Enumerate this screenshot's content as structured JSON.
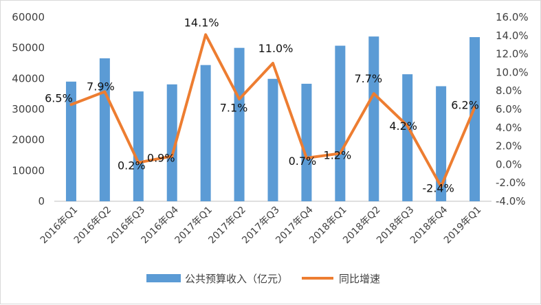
{
  "chart_data": {
    "type": "bar",
    "categories": [
      "2016年Q1",
      "2016年Q2",
      "2016年Q3",
      "2016年Q4",
      "2017年Q1",
      "2017年Q2",
      "2017年Q3",
      "2017年Q4",
      "2018年Q1",
      "2018年Q2",
      "2018年Q3",
      "2018年Q4",
      "2019年Q1"
    ],
    "series": [
      {
        "name": "公共预算收入（亿元）",
        "type": "bar",
        "axis": "left",
        "color": "#5b9bd5",
        "values": [
          39000,
          46600,
          35800,
          38100,
          44400,
          50000,
          39900,
          38300,
          50700,
          53700,
          41400,
          37500,
          53500
        ]
      },
      {
        "name": "同比增速",
        "type": "line",
        "axis": "right",
        "color": "#ed7d31",
        "values": [
          6.5,
          7.9,
          0.2,
          0.9,
          14.1,
          7.1,
          11.0,
          0.7,
          1.2,
          7.7,
          4.2,
          -2.4,
          6.2
        ],
        "labels": [
          "6.5%",
          "7.9%",
          "0.2%",
          "0.9%",
          "14.1%",
          "7.1%",
          "11.0%",
          "0.7%",
          "1.2%",
          "7.7%",
          "4.2%",
          "-2.4%",
          "6.2%"
        ]
      }
    ],
    "y_left": {
      "ylim": [
        0,
        60000
      ],
      "ticks": [
        "0",
        "10000",
        "20000",
        "30000",
        "40000",
        "50000",
        "60000"
      ]
    },
    "y_right": {
      "ylim": [
        -4,
        16
      ],
      "ticks": [
        "-4.0%",
        "-2.0%",
        "0.0%",
        "2.0%",
        "4.0%",
        "6.0%",
        "8.0%",
        "10.0%",
        "12.0%",
        "14.0%",
        "16.0%"
      ]
    },
    "grid": false,
    "legend": "bottom"
  }
}
